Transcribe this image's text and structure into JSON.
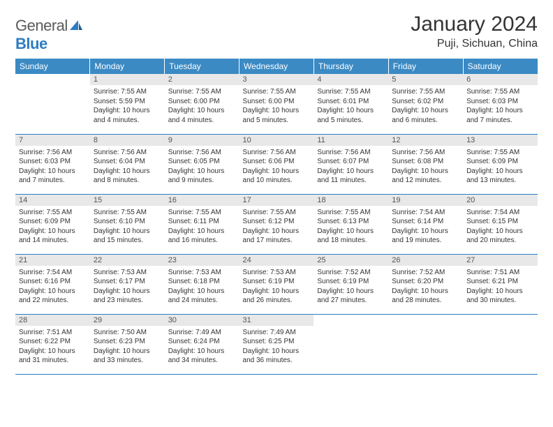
{
  "logo": {
    "general": "General",
    "blue": "Blue"
  },
  "title": "January 2024",
  "location": "Puji, Sichuan, China",
  "colors": {
    "headerBg": "#3b8ac4",
    "headerText": "#ffffff",
    "dayNumBg": "#e8e8e8",
    "dayNumText": "#555555",
    "border": "#2e7cc2",
    "bodyText": "#333333",
    "logoGray": "#5a5a5a",
    "logoBlue": "#2e7cc2"
  },
  "weekdays": [
    "Sunday",
    "Monday",
    "Tuesday",
    "Wednesday",
    "Thursday",
    "Friday",
    "Saturday"
  ],
  "startOffset": 1,
  "days": [
    {
      "n": 1,
      "sunrise": "7:55 AM",
      "sunset": "5:59 PM",
      "daylight": "10 hours and 4 minutes."
    },
    {
      "n": 2,
      "sunrise": "7:55 AM",
      "sunset": "6:00 PM",
      "daylight": "10 hours and 4 minutes."
    },
    {
      "n": 3,
      "sunrise": "7:55 AM",
      "sunset": "6:00 PM",
      "daylight": "10 hours and 5 minutes."
    },
    {
      "n": 4,
      "sunrise": "7:55 AM",
      "sunset": "6:01 PM",
      "daylight": "10 hours and 5 minutes."
    },
    {
      "n": 5,
      "sunrise": "7:55 AM",
      "sunset": "6:02 PM",
      "daylight": "10 hours and 6 minutes."
    },
    {
      "n": 6,
      "sunrise": "7:55 AM",
      "sunset": "6:03 PM",
      "daylight": "10 hours and 7 minutes."
    },
    {
      "n": 7,
      "sunrise": "7:56 AM",
      "sunset": "6:03 PM",
      "daylight": "10 hours and 7 minutes."
    },
    {
      "n": 8,
      "sunrise": "7:56 AM",
      "sunset": "6:04 PM",
      "daylight": "10 hours and 8 minutes."
    },
    {
      "n": 9,
      "sunrise": "7:56 AM",
      "sunset": "6:05 PM",
      "daylight": "10 hours and 9 minutes."
    },
    {
      "n": 10,
      "sunrise": "7:56 AM",
      "sunset": "6:06 PM",
      "daylight": "10 hours and 10 minutes."
    },
    {
      "n": 11,
      "sunrise": "7:56 AM",
      "sunset": "6:07 PM",
      "daylight": "10 hours and 11 minutes."
    },
    {
      "n": 12,
      "sunrise": "7:56 AM",
      "sunset": "6:08 PM",
      "daylight": "10 hours and 12 minutes."
    },
    {
      "n": 13,
      "sunrise": "7:55 AM",
      "sunset": "6:09 PM",
      "daylight": "10 hours and 13 minutes."
    },
    {
      "n": 14,
      "sunrise": "7:55 AM",
      "sunset": "6:09 PM",
      "daylight": "10 hours and 14 minutes."
    },
    {
      "n": 15,
      "sunrise": "7:55 AM",
      "sunset": "6:10 PM",
      "daylight": "10 hours and 15 minutes."
    },
    {
      "n": 16,
      "sunrise": "7:55 AM",
      "sunset": "6:11 PM",
      "daylight": "10 hours and 16 minutes."
    },
    {
      "n": 17,
      "sunrise": "7:55 AM",
      "sunset": "6:12 PM",
      "daylight": "10 hours and 17 minutes."
    },
    {
      "n": 18,
      "sunrise": "7:55 AM",
      "sunset": "6:13 PM",
      "daylight": "10 hours and 18 minutes."
    },
    {
      "n": 19,
      "sunrise": "7:54 AM",
      "sunset": "6:14 PM",
      "daylight": "10 hours and 19 minutes."
    },
    {
      "n": 20,
      "sunrise": "7:54 AM",
      "sunset": "6:15 PM",
      "daylight": "10 hours and 20 minutes."
    },
    {
      "n": 21,
      "sunrise": "7:54 AM",
      "sunset": "6:16 PM",
      "daylight": "10 hours and 22 minutes."
    },
    {
      "n": 22,
      "sunrise": "7:53 AM",
      "sunset": "6:17 PM",
      "daylight": "10 hours and 23 minutes."
    },
    {
      "n": 23,
      "sunrise": "7:53 AM",
      "sunset": "6:18 PM",
      "daylight": "10 hours and 24 minutes."
    },
    {
      "n": 24,
      "sunrise": "7:53 AM",
      "sunset": "6:19 PM",
      "daylight": "10 hours and 26 minutes."
    },
    {
      "n": 25,
      "sunrise": "7:52 AM",
      "sunset": "6:19 PM",
      "daylight": "10 hours and 27 minutes."
    },
    {
      "n": 26,
      "sunrise": "7:52 AM",
      "sunset": "6:20 PM",
      "daylight": "10 hours and 28 minutes."
    },
    {
      "n": 27,
      "sunrise": "7:51 AM",
      "sunset": "6:21 PM",
      "daylight": "10 hours and 30 minutes."
    },
    {
      "n": 28,
      "sunrise": "7:51 AM",
      "sunset": "6:22 PM",
      "daylight": "10 hours and 31 minutes."
    },
    {
      "n": 29,
      "sunrise": "7:50 AM",
      "sunset": "6:23 PM",
      "daylight": "10 hours and 33 minutes."
    },
    {
      "n": 30,
      "sunrise": "7:49 AM",
      "sunset": "6:24 PM",
      "daylight": "10 hours and 34 minutes."
    },
    {
      "n": 31,
      "sunrise": "7:49 AM",
      "sunset": "6:25 PM",
      "daylight": "10 hours and 36 minutes."
    }
  ],
  "labels": {
    "sunrise": "Sunrise:",
    "sunset": "Sunset:",
    "daylight": "Daylight:"
  }
}
